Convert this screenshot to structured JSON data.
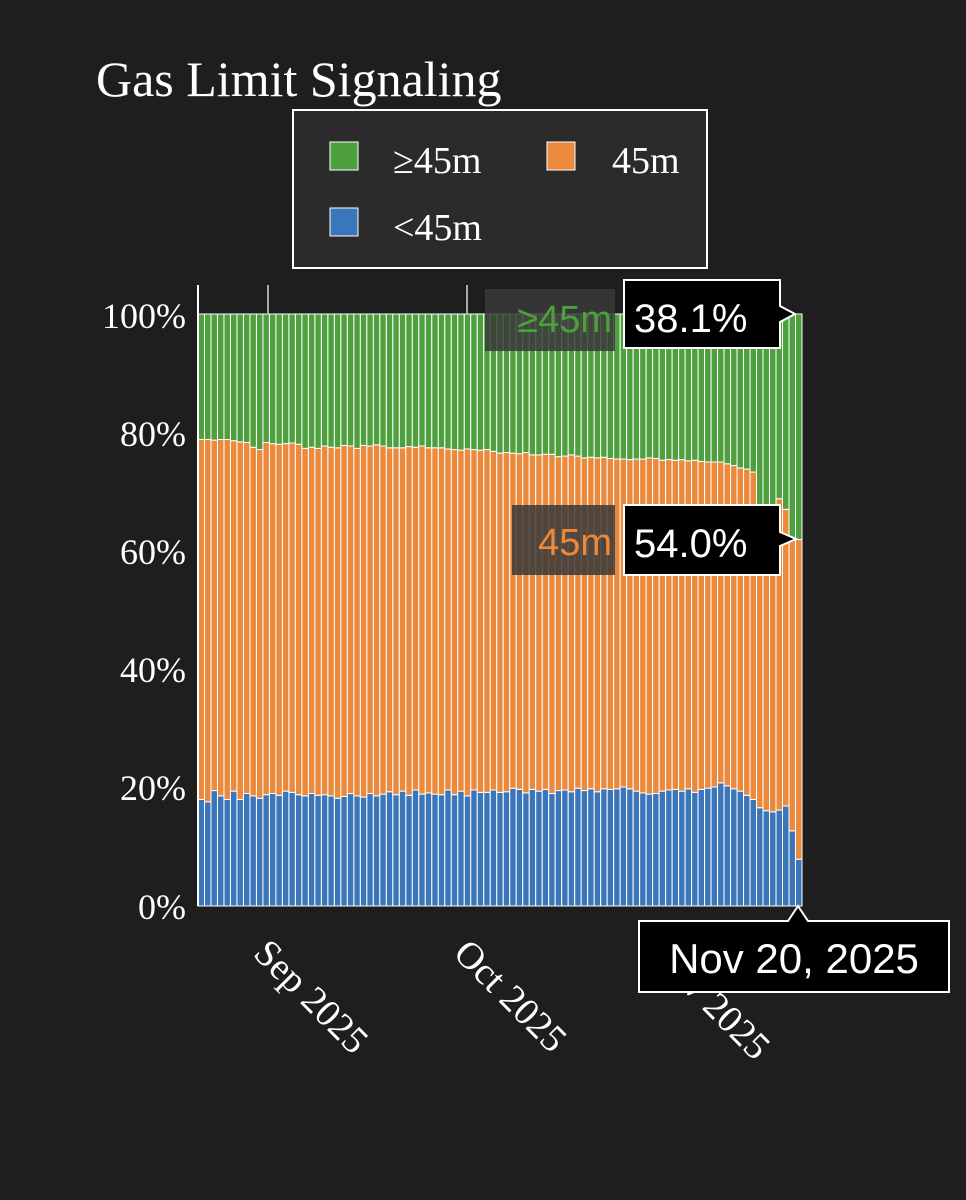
{
  "chart_data": {
    "type": "bar",
    "stacked": true,
    "normalized_percent": true,
    "title": "Gas Limit Signaling",
    "xlabel": "",
    "ylabel": "",
    "ylim": [
      0,
      100
    ],
    "y_ticks": [
      "0%",
      "20%",
      "40%",
      "60%",
      "80%",
      "100%"
    ],
    "x_ticks": [
      "Sep 2025",
      "Oct 2025",
      "Nov 2025"
    ],
    "x_start": "2025-08-17",
    "x_end": "2025-11-20",
    "grid": false,
    "legend": {
      "placement": "top-center",
      "entries": [
        "≥45m",
        "45m",
        "<45m"
      ]
    },
    "series": [
      {
        "name": "<45m",
        "color": "#3a76b9",
        "values": [
          18.0,
          17.6,
          19.5,
          18.6,
          18.0,
          19.4,
          18.0,
          19.0,
          18.6,
          18.2,
          18.8,
          19.0,
          18.7,
          19.4,
          19.2,
          18.8,
          18.6,
          19.0,
          18.7,
          18.8,
          18.6,
          18.2,
          18.5,
          19.0,
          18.6,
          18.4,
          19.0,
          18.6,
          18.9,
          19.3,
          18.8,
          19.4,
          18.7,
          19.6,
          18.9,
          19.1,
          18.9,
          18.8,
          19.6,
          18.8,
          19.4,
          18.6,
          19.6,
          19.2,
          19.2,
          19.6,
          19.2,
          19.3,
          19.9,
          19.7,
          19.1,
          19.7,
          19.4,
          19.7,
          19.0,
          19.5,
          19.6,
          19.3,
          19.9,
          19.5,
          19.8,
          19.3,
          19.8,
          19.7,
          19.8,
          20.1,
          19.8,
          19.4,
          19.1,
          18.9,
          19.0,
          19.4,
          19.6,
          19.7,
          19.4,
          19.8,
          19.2,
          19.7,
          19.9,
          20.1,
          20.8,
          20.3,
          19.8,
          19.4,
          18.7,
          18.0,
          16.6,
          16.1,
          15.9,
          16.2,
          16.9,
          12.7,
          7.9
        ]
      },
      {
        "name": "45m",
        "color": "#eb893d",
        "values": [
          60.8,
          61.2,
          59.2,
          60.2,
          60.8,
          59.2,
          60.4,
          59.3,
          58.9,
          58.9,
          59.5,
          59.1,
          59.3,
          58.7,
          59.0,
          59.2,
          58.7,
          58.5,
          58.6,
          58.9,
          58.9,
          59.2,
          59.3,
          58.7,
          58.7,
          59.4,
          58.7,
          59.3,
          58.8,
          58.1,
          58.6,
          58.0,
          58.9,
          57.9,
          58.8,
          58.3,
          58.5,
          58.6,
          57.6,
          58.3,
          57.6,
          58.6,
          57.5,
          57.8,
          57.9,
          57.2,
          57.3,
          57.3,
          56.6,
          56.7,
          57.5,
          56.5,
          56.8,
          56.6,
          57.3,
          56.4,
          56.4,
          56.9,
          56.1,
          56.2,
          56.0,
          56.4,
          56.0,
          55.9,
          55.7,
          55.4,
          55.6,
          56.1,
          56.4,
          56.8,
          56.6,
          55.9,
          55.8,
          55.6,
          56.0,
          55.4,
          56.1,
          55.4,
          55.1,
          54.9,
          54.2,
          54.4,
          54.6,
          54.6,
          55.1,
          55.3,
          51.0,
          51.2,
          51.6,
          52.6,
          50.1,
          49.4,
          54.0
        ]
      },
      {
        "name": "≥45m",
        "color": "#4e9f3d",
        "values": [
          21.2,
          21.2,
          21.3,
          21.2,
          21.2,
          21.4,
          21.6,
          21.7,
          22.5,
          22.9,
          21.7,
          21.9,
          22.0,
          21.9,
          21.8,
          22.0,
          22.7,
          22.5,
          22.7,
          22.3,
          22.5,
          22.6,
          22.2,
          22.3,
          22.7,
          22.2,
          22.3,
          22.1,
          22.3,
          22.6,
          22.6,
          22.6,
          22.4,
          22.5,
          22.3,
          22.6,
          22.6,
          22.6,
          22.8,
          22.9,
          23.0,
          22.8,
          22.9,
          23.0,
          22.9,
          23.2,
          23.5,
          23.4,
          23.5,
          23.6,
          23.4,
          23.8,
          23.8,
          23.7,
          23.7,
          24.1,
          24.0,
          23.8,
          24.0,
          24.3,
          24.2,
          24.3,
          24.2,
          24.4,
          24.5,
          24.5,
          24.6,
          24.5,
          24.5,
          24.3,
          24.4,
          24.7,
          24.6,
          24.7,
          24.6,
          24.8,
          24.7,
          24.9,
          25.0,
          25.0,
          25.0,
          25.3,
          25.6,
          26.0,
          26.2,
          26.7,
          32.4,
          32.7,
          32.5,
          31.2,
          33.0,
          37.9,
          38.1
        ]
      }
    ],
    "hover": {
      "date": "Nov 20, 2025",
      "labels": [
        {
          "series": "≥45m",
          "value": "38.1%",
          "color": "#4e9f3d"
        },
        {
          "series": "45m",
          "value": "54.0%",
          "color": "#eb893d"
        }
      ]
    }
  }
}
